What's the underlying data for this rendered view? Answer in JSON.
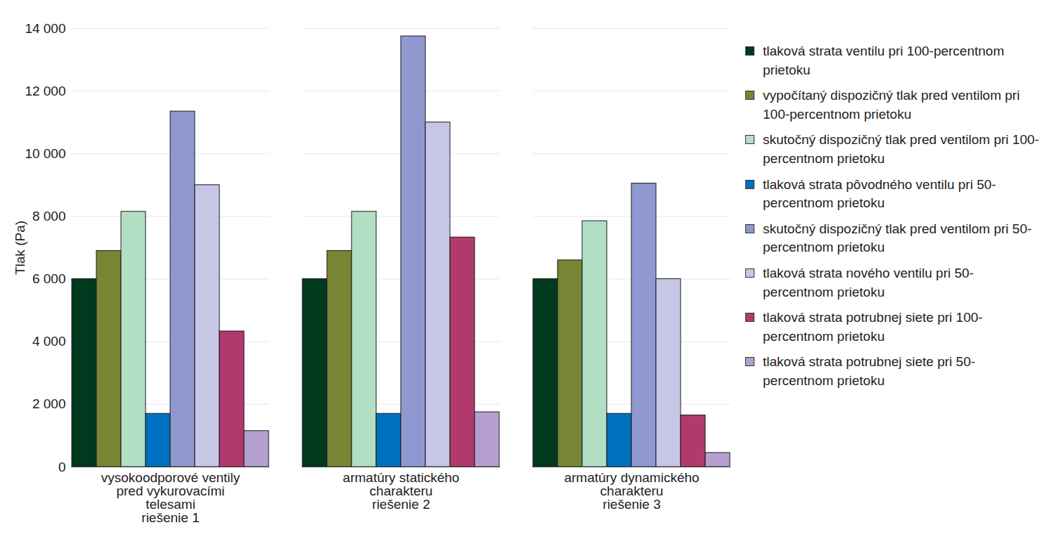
{
  "chart_data": {
    "type": "bar",
    "y_label": "Tlak (Pa)",
    "categories": [
      "vysokoodporové ventily\npred vykurovacími\ntelesami\nriešenie 1",
      "armatúry statického\ncharakteru\nriešenie 2",
      "armatúry dynamického\ncharakteru\nriešenie 3"
    ],
    "series": [
      {
        "name": "tlaková strata ventilu pri 100-percentnom prietoku",
        "color": "#003a1e",
        "values": [
          6000,
          6000,
          6000
        ]
      },
      {
        "name": "vypočítaný dispozičný tlak pred ventilom pri 100-percentnom prietoku",
        "color": "#788535",
        "values": [
          6900,
          6900,
          6600
        ]
      },
      {
        "name": "skutočný dispozičný tlak pred ventilom pri 100-percentnom prietoku",
        "color": "#b2dfc3",
        "values": [
          8150,
          8150,
          7850
        ]
      },
      {
        "name": "tlaková strata pôvodného ventilu pri 50-percentnom prietoku",
        "color": "#0070c0",
        "values": [
          1700,
          1700,
          1700
        ]
      },
      {
        "name": "skutočný dispozičný tlak pred ventilom pri 50-percentnom prietoku",
        "color": "#8f99d0",
        "values": [
          11350,
          13750,
          9050
        ]
      },
      {
        "name": "tlaková strata nového ventilu pri 50-percentnom prietoku",
        "color": "#c6c7e6",
        "values": [
          9000,
          11000,
          6000
        ]
      },
      {
        "name": "tlaková strata potrubnej siete pri 100-percentnom prietoku",
        "color": "#b03a6e",
        "values": [
          4330,
          7330,
          1650
        ]
      },
      {
        "name": "tlaková strata potrubnej siete pri 50-percentnom prietoku",
        "color": "#b59fd0",
        "values": [
          1150,
          1750,
          450
        ]
      }
    ],
    "ylim": [
      0,
      14000
    ],
    "yticks": [
      0,
      {
        "value": 2000,
        "label": "2 000"
      },
      {
        "value": 4000,
        "label": "4 000"
      },
      {
        "value": 6000,
        "label": "6 000"
      },
      {
        "value": 8000,
        "label": "8 000"
      },
      {
        "value": 10000,
        "label": "10 000"
      },
      {
        "value": 12000,
        "label": "12 000"
      },
      {
        "value": 14000,
        "label": "14 000"
      }
    ],
    "grid": true,
    "legend": "right"
  }
}
